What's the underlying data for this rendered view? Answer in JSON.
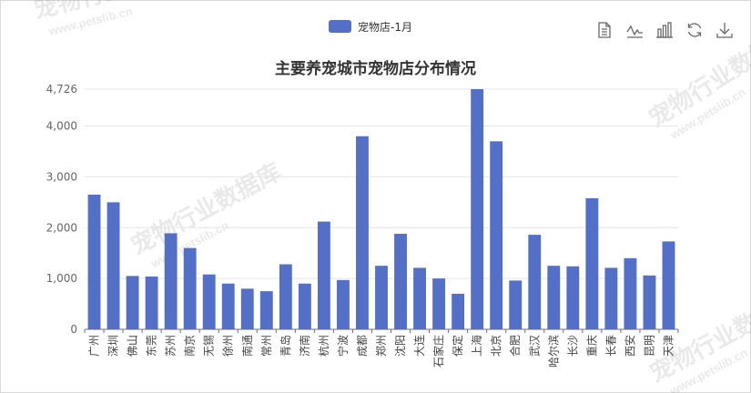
{
  "legend": {
    "label": "宠物店-1月"
  },
  "toolbox": {
    "icons": [
      "data-view-icon",
      "line-chart-icon",
      "bar-chart-icon",
      "restore-icon",
      "download-icon"
    ]
  },
  "chart_data": {
    "type": "bar",
    "title": "主要养宠城市宠物店分布情况",
    "series": [
      {
        "name": "宠物店-1月",
        "color": "#5470c6",
        "values": [
          2650,
          2500,
          1050,
          1040,
          1890,
          1600,
          1080,
          900,
          800,
          750,
          1280,
          900,
          2120,
          970,
          3800,
          1250,
          1880,
          1210,
          1000,
          700,
          4726,
          3700,
          960,
          1860,
          1250,
          1240,
          2580,
          1210,
          1400,
          1060,
          1730
        ]
      }
    ],
    "categories": [
      "广州",
      "深圳",
      "佛山",
      "东莞",
      "苏州",
      "南京",
      "无锡",
      "徐州",
      "南通",
      "常州",
      "青岛",
      "济南",
      "杭州",
      "宁波",
      "成都",
      "郑州",
      "沈阳",
      "大连",
      "石家庄",
      "保定",
      "上海",
      "北京",
      "合肥",
      "武汉",
      "哈尔滨",
      "长沙",
      "重庆",
      "长春",
      "西安",
      "昆明",
      "天津"
    ],
    "y_ticks": [
      "0",
      "1,000",
      "2,000",
      "3,000",
      "4,000",
      "4,726"
    ],
    "y_tick_values": [
      0,
      1000,
      2000,
      3000,
      4000,
      4726
    ],
    "ylim": [
      0,
      4726
    ],
    "grid": true,
    "legend_position": "top-center"
  },
  "watermark": {
    "text": "宠物行业数据库",
    "subtext": "www.petslib.cn"
  }
}
